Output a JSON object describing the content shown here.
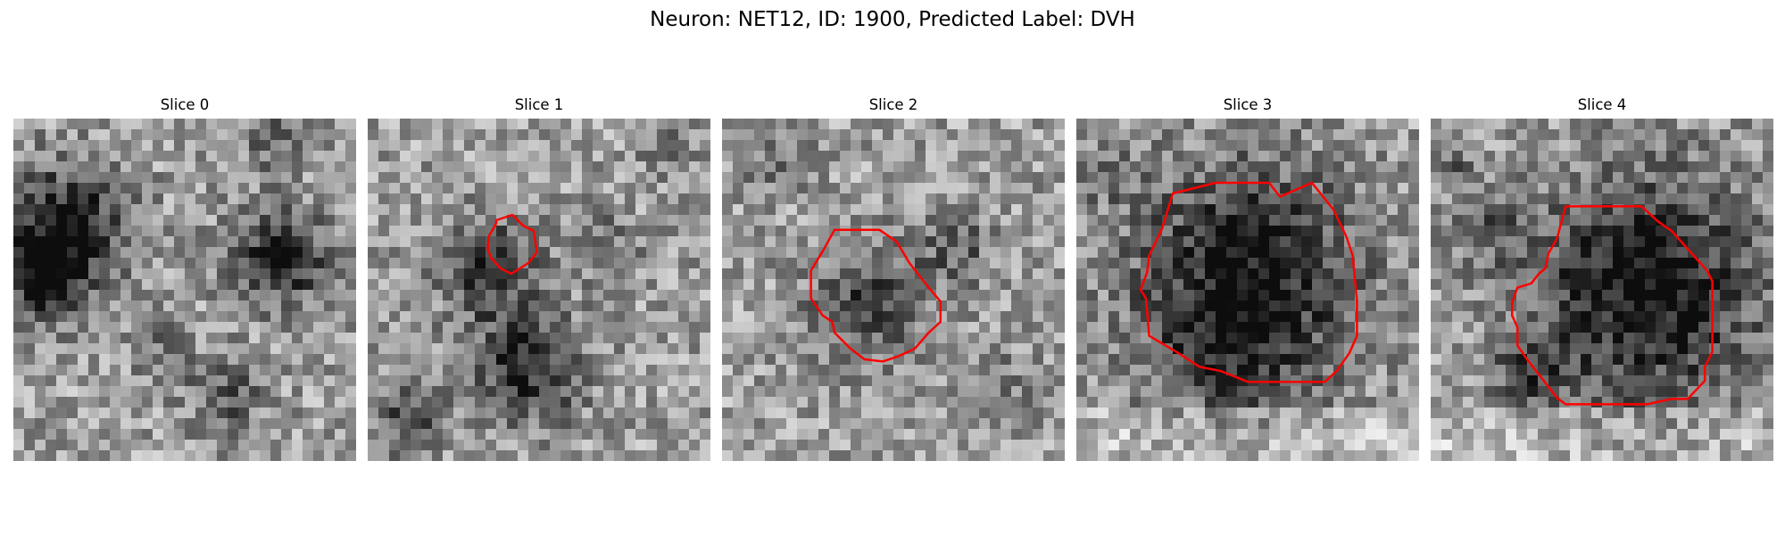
{
  "figure": {
    "title": "Neuron: NET12, ID: 1900, Predicted Label: DVH",
    "colormap": "gray",
    "roi_color": "#ff0000"
  },
  "slices": [
    {
      "label": "Slice 0",
      "has_roi": false
    },
    {
      "label": "Slice 1",
      "has_roi": true
    },
    {
      "label": "Slice 2",
      "has_roi": true
    },
    {
      "label": "Slice 3",
      "has_roi": true
    },
    {
      "label": "Slice 4",
      "has_roi": true
    }
  ]
}
